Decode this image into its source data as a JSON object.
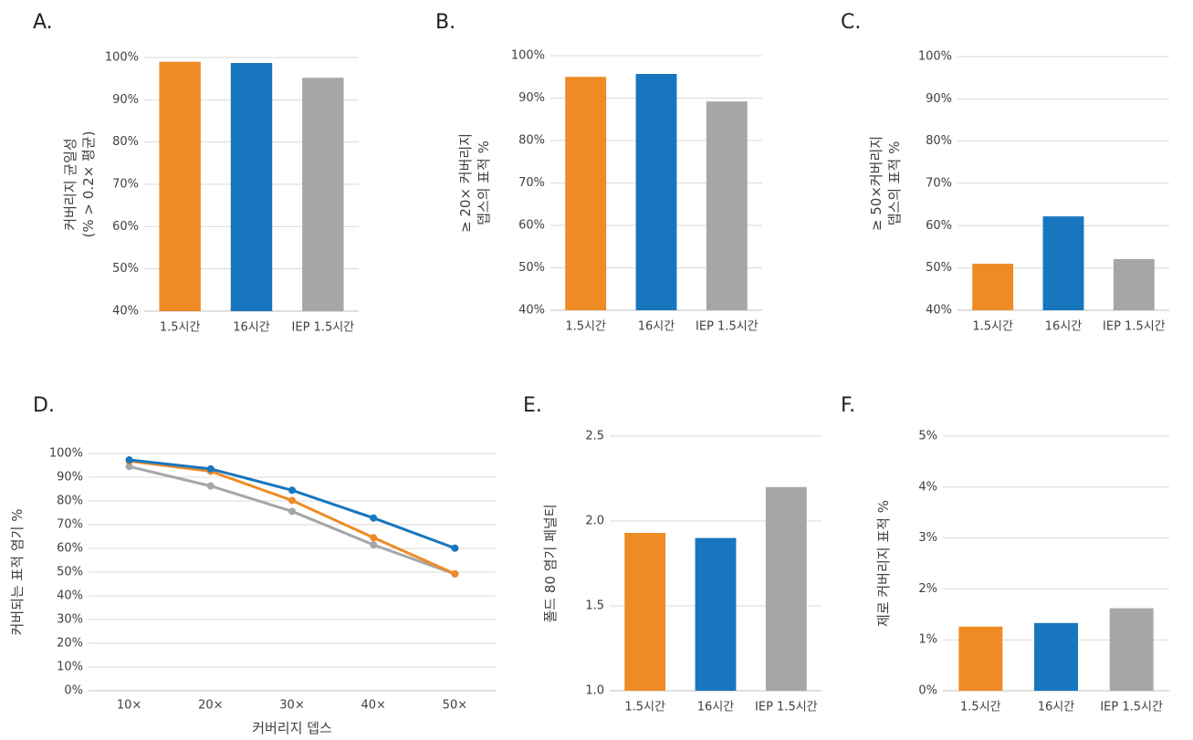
{
  "colors": {
    "orange": "#EE8B25",
    "blue": "#1776BE",
    "gray": "#A5A6A8",
    "grid": "#D9D9D9",
    "axis": "#BFBFBF"
  },
  "chart_data": [
    {
      "id": "A",
      "letter": "A.",
      "type": "bar",
      "ylabel": [
        "커버리지 균일성",
        "(% > 0.2× 평균)"
      ],
      "categories": [
        "1.5시간",
        "16시간",
        "IEP 1.5시간"
      ],
      "values": [
        99,
        98.7,
        95.2
      ],
      "ylim": [
        40,
        100
      ],
      "yticks": [
        40,
        50,
        60,
        70,
        80,
        90,
        100
      ],
      "yformat": "percent",
      "colors": [
        "#EE8B25",
        "#1776BE",
        "#A5A6A8"
      ],
      "grid": true
    },
    {
      "id": "B",
      "letter": "B.",
      "type": "bar",
      "ylabel": [
        "≥ 20× 커버리지",
        "뎁스의 표적 %"
      ],
      "categories": [
        "1.5시간",
        "16시간",
        "IEP 1.5시간"
      ],
      "values": [
        95,
        95.7,
        89.2
      ],
      "ylim": [
        40,
        100
      ],
      "yticks": [
        40,
        50,
        60,
        70,
        80,
        90,
        100
      ],
      "yformat": "percent",
      "colors": [
        "#EE8B25",
        "#1776BE",
        "#A5A6A8"
      ],
      "grid": true
    },
    {
      "id": "C",
      "letter": "C.",
      "type": "bar",
      "ylabel": [
        "≥ 50×커버리지",
        "뎁스의 표적 %"
      ],
      "categories": [
        "1.5시간",
        "16시간",
        "IEP 1.5시간"
      ],
      "values": [
        51,
        62.2,
        52.1
      ],
      "ylim": [
        40,
        100
      ],
      "yticks": [
        40,
        50,
        60,
        70,
        80,
        90,
        100
      ],
      "yformat": "percent",
      "colors": [
        "#EE8B25",
        "#1776BE",
        "#A5A6A8"
      ],
      "grid": true
    },
    {
      "id": "D",
      "letter": "D.",
      "type": "line",
      "ylabel": [
        "커버되는 표적 염기 %"
      ],
      "xlabel": "커버리지 뎁스",
      "categories": [
        "10×",
        "20×",
        "30×",
        "40×",
        "50×"
      ],
      "series": [
        {
          "values": [
            97.3,
            93.5,
            84.5,
            72.8,
            60.1
          ],
          "color": "#1776BE"
        },
        {
          "values": [
            96.8,
            92.5,
            80.2,
            64.5,
            49.3
          ],
          "color": "#EE8B25"
        },
        {
          "values": [
            94.5,
            86.3,
            75.6,
            61.5,
            49.2
          ],
          "color": "#A5A6A8"
        }
      ],
      "ylim": [
        0,
        100
      ],
      "yticks": [
        0,
        10,
        20,
        30,
        40,
        50,
        60,
        70,
        80,
        90,
        100
      ],
      "yformat": "percent",
      "grid": true
    },
    {
      "id": "E",
      "letter": "E.",
      "type": "bar",
      "ylabel": [
        "폴드 80 염기 페널티"
      ],
      "categories": [
        "1.5시간",
        "16시간",
        "IEP 1.5시간"
      ],
      "values": [
        1.93,
        1.9,
        2.2
      ],
      "ylim": [
        1.0,
        2.5
      ],
      "yticks": [
        1.0,
        1.5,
        2.0,
        2.5
      ],
      "yformat": "decimal1",
      "colors": [
        "#EE8B25",
        "#1776BE",
        "#A5A6A8"
      ],
      "grid": true
    },
    {
      "id": "F",
      "letter": "F.",
      "type": "bar",
      "ylabel": [
        "제로 커버리지 표적 %"
      ],
      "categories": [
        "1.5시간",
        "16시간",
        "IEP 1.5시간"
      ],
      "values": [
        1.26,
        1.33,
        1.62
      ],
      "ylim": [
        0,
        5
      ],
      "yticks": [
        0,
        1,
        2,
        3,
        4,
        5
      ],
      "yformat": "percent",
      "colors": [
        "#EE8B25",
        "#1776BE",
        "#A5A6A8"
      ],
      "grid": true
    }
  ]
}
